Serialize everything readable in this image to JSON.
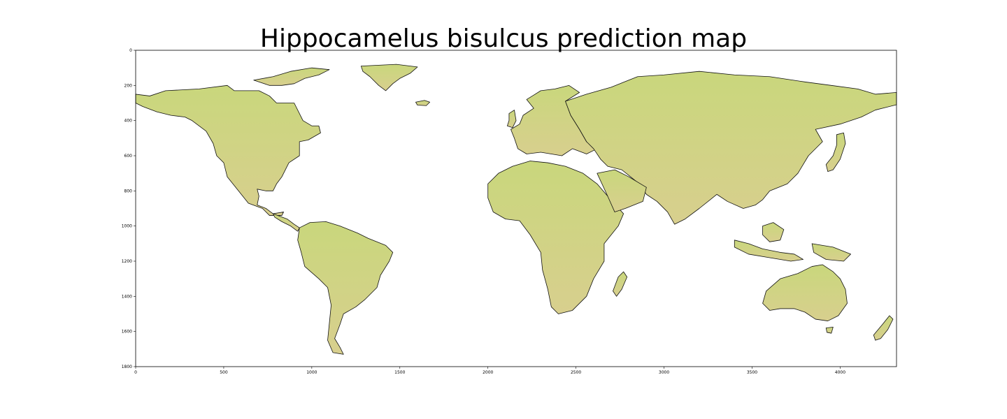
{
  "chart_data": {
    "type": "heatmap",
    "title": "Hippocamelus bisulcus prediction map",
    "xlabel": "",
    "ylabel": "",
    "xlim": [
      0,
      4320
    ],
    "ylim": [
      1800,
      0
    ],
    "x_ticks": [
      0,
      500,
      1000,
      1500,
      2000,
      2500,
      3000,
      3500,
      4000
    ],
    "y_ticks": [
      0,
      200,
      400,
      600,
      800,
      1000,
      1200,
      1400,
      1600,
      1800
    ],
    "grid": false,
    "legend": "none",
    "colors": {
      "land_low": "#c9d77c",
      "land_high": "#d8cf8e",
      "coastline": "#111111",
      "background": "#ffffff"
    }
  }
}
